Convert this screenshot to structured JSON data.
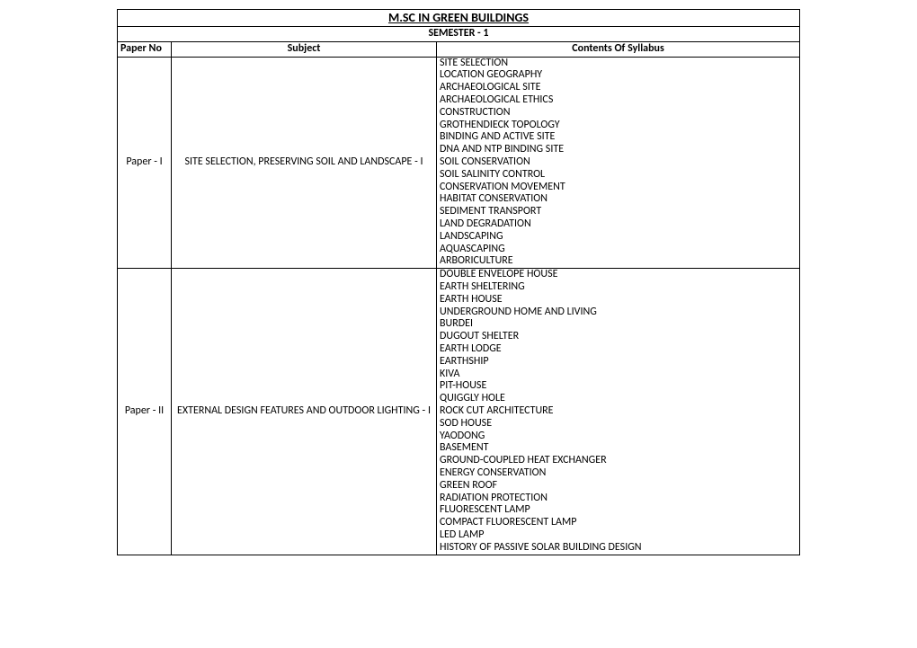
{
  "title": "M.SC IN GREEN BUILDINGS",
  "semester": "SEMESTER - 1",
  "headers": {
    "paper_no": "Paper No",
    "subject": "Subject",
    "contents": "Contents Of Syllabus"
  },
  "papers": [
    {
      "no": "Paper - I",
      "subject": "SITE SELECTION, PRESERVING SOIL AND LANDSCAPE - I",
      "contents": [
        "SITE SELECTION",
        "LOCATION GEOGRAPHY",
        "ARCHAEOLOGICAL SITE",
        "ARCHAEOLOGICAL ETHICS",
        "CONSTRUCTION",
        "GROTHENDIECK TOPOLOGY",
        "BINDING AND ACTIVE SITE",
        "DNA AND NTP BINDING SITE",
        "SOIL CONSERVATION",
        "SOIL SALINITY CONTROL",
        "CONSERVATION MOVEMENT",
        "HABITAT CONSERVATION",
        "SEDIMENT TRANSPORT",
        "LAND DEGRADATION",
        "LANDSCAPING",
        "AQUASCAPING",
        "ARBORICULTURE"
      ]
    },
    {
      "no": "Paper - II",
      "subject": "EXTERNAL DESIGN FEATURES AND OUTDOOR LIGHTING - I",
      "contents": [
        "DOUBLE ENVELOPE HOUSE",
        "EARTH SHELTERING",
        "EARTH HOUSE",
        "UNDERGROUND HOME AND LIVING",
        "BURDEI",
        "DUGOUT SHELTER",
        "EARTH LODGE",
        "EARTHSHIP",
        "KIVA",
        "PIT-HOUSE",
        "QUIGGLY HOLE",
        "ROCK CUT ARCHITECTURE",
        "SOD HOUSE",
        "YAODONG",
        "BASEMENT",
        "GROUND-COUPLED HEAT EXCHANGER",
        "ENERGY CONSERVATION",
        "GREEN ROOF",
        "RADIATION PROTECTION",
        "FLUORESCENT LAMP",
        "COMPACT FLUORESCENT LAMP",
        "LED LAMP",
        "HISTORY OF PASSIVE SOLAR BUILDING DESIGN"
      ]
    }
  ]
}
